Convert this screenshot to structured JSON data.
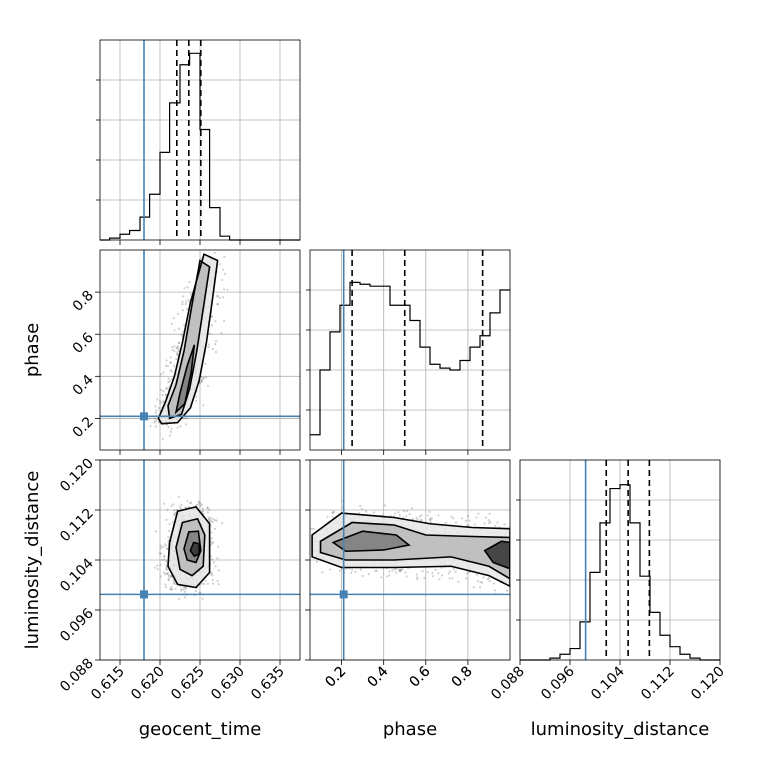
{
  "chart_data": {
    "type": "corner",
    "parameters": [
      "geocent_time",
      "phase",
      "luminosity_distance"
    ],
    "ranges": {
      "geocent_time": [
        0.6125,
        0.6375
      ],
      "phase": [
        0.05,
        1.0
      ],
      "luminosity_distance": [
        0.088,
        0.12
      ]
    },
    "ticks": {
      "geocent_time": [
        0.615,
        0.62,
        0.625,
        0.63,
        0.635
      ],
      "phase": [
        0.2,
        0.4,
        0.6,
        0.8
      ],
      "luminosity_distance": [
        0.088,
        0.096,
        0.104,
        0.112,
        0.12
      ]
    },
    "tick_labels": {
      "geocent_time": [
        "0.615",
        "0.620",
        "0.625",
        "0.630",
        "0.635"
      ],
      "phase": [
        "0.2",
        "0.4",
        "0.6",
        "0.8"
      ],
      "luminosity_distance": [
        "0.088",
        "0.096",
        "0.104",
        "0.112",
        "0.120"
      ]
    },
    "truths": {
      "geocent_time": 0.618,
      "phase": 0.21,
      "luminosity_distance": 0.0985
    },
    "quantiles": {
      "geocent_time": [
        0.6221,
        0.6236,
        0.6251
      ],
      "phase": [
        0.25,
        0.5,
        0.87
      ],
      "luminosity_distance": [
        0.1018,
        0.1053,
        0.1087
      ]
    },
    "histograms": {
      "geocent_time": {
        "edges": [
          0.6125,
          0.6137,
          0.615,
          0.6162,
          0.6175,
          0.6187,
          0.62,
          0.6212,
          0.6225,
          0.6237,
          0.625,
          0.6262,
          0.6275,
          0.6287,
          0.63,
          0.6312,
          0.6325,
          0.6337,
          0.635,
          0.6362,
          0.6375
        ],
        "counts": [
          0.0,
          0.01,
          0.03,
          0.05,
          0.12,
          0.24,
          0.46,
          0.72,
          0.92,
          0.98,
          0.58,
          0.17,
          0.02,
          0.0,
          0.0,
          0.0,
          0.0,
          0.0,
          0.0,
          0.0
        ]
      },
      "phase": {
        "edges": [
          0.05,
          0.0975,
          0.145,
          0.1925,
          0.24,
          0.2875,
          0.335,
          0.3825,
          0.43,
          0.4775,
          0.525,
          0.5725,
          0.62,
          0.6675,
          0.715,
          0.7625,
          0.81,
          0.8575,
          0.905,
          0.9525,
          1.0
        ],
        "counts": [
          0.08,
          0.42,
          0.62,
          0.76,
          0.88,
          0.87,
          0.86,
          0.86,
          0.76,
          0.76,
          0.68,
          0.54,
          0.45,
          0.43,
          0.42,
          0.47,
          0.54,
          0.6,
          0.72,
          0.84
        ]
      },
      "luminosity_distance": {
        "edges": [
          0.088,
          0.0896,
          0.0912,
          0.0928,
          0.0944,
          0.096,
          0.0976,
          0.0992,
          0.1008,
          0.1024,
          0.104,
          0.1056,
          0.1072,
          0.1088,
          0.1104,
          0.112,
          0.1136,
          0.1152,
          0.1168,
          0.1184,
          0.12
        ],
        "counts": [
          0.0,
          0.0,
          0.0,
          0.01,
          0.03,
          0.06,
          0.2,
          0.46,
          0.72,
          0.9,
          0.92,
          0.72,
          0.44,
          0.25,
          0.13,
          0.07,
          0.03,
          0.01,
          0.0,
          0.0
        ]
      }
    },
    "pairs": [
      {
        "x": "geocent_time",
        "y": "phase",
        "levels": [
          [
            [
              0.6202,
              0.175
            ],
            [
              0.6222,
              0.18
            ],
            [
              0.6238,
              0.25
            ],
            [
              0.6249,
              0.38
            ],
            [
              0.6258,
              0.56
            ],
            [
              0.6265,
              0.75
            ],
            [
              0.6272,
              0.95
            ],
            [
              0.6255,
              0.98
            ],
            [
              0.6238,
              0.75
            ],
            [
              0.6228,
              0.56
            ],
            [
              0.6218,
              0.4
            ],
            [
              0.6207,
              0.28
            ],
            [
              0.6198,
              0.2
            ]
          ],
          [
            [
              0.6212,
              0.2
            ],
            [
              0.6227,
              0.22
            ],
            [
              0.6237,
              0.34
            ],
            [
              0.6246,
              0.52
            ],
            [
              0.6254,
              0.72
            ],
            [
              0.6262,
              0.92
            ],
            [
              0.625,
              0.95
            ],
            [
              0.624,
              0.74
            ],
            [
              0.623,
              0.52
            ],
            [
              0.622,
              0.36
            ],
            [
              0.621,
              0.26
            ]
          ],
          [
            [
              0.622,
              0.23
            ],
            [
              0.6231,
              0.27
            ],
            [
              0.6239,
              0.42
            ],
            [
              0.6243,
              0.55
            ],
            [
              0.6234,
              0.45
            ],
            [
              0.6225,
              0.32
            ]
          ]
        ]
      },
      {
        "x": "geocent_time",
        "y": "luminosity_distance",
        "levels": [
          [
            [
              0.6212,
              0.1068
            ],
            [
              0.6222,
              0.1118
            ],
            [
              0.6245,
              0.1125
            ],
            [
              0.6262,
              0.1098
            ],
            [
              0.6262,
              0.102
            ],
            [
              0.6245,
              0.0996
            ],
            [
              0.6222,
              0.1001
            ],
            [
              0.621,
              0.103
            ]
          ],
          [
            [
              0.622,
              0.106
            ],
            [
              0.6228,
              0.11
            ],
            [
              0.6247,
              0.1106
            ],
            [
              0.6256,
              0.108
            ],
            [
              0.6254,
              0.103
            ],
            [
              0.624,
              0.1015
            ],
            [
              0.6225,
              0.1025
            ]
          ],
          [
            [
              0.623,
              0.1058
            ],
            [
              0.6236,
              0.1085
            ],
            [
              0.6248,
              0.1086
            ],
            [
              0.6251,
              0.1055
            ],
            [
              0.6245,
              0.1036
            ],
            [
              0.6234,
              0.104
            ]
          ],
          [
            [
              0.6238,
              0.1055
            ],
            [
              0.6242,
              0.1068
            ],
            [
              0.6249,
              0.1066
            ],
            [
              0.6249,
              0.105
            ],
            [
              0.6243,
              0.1046
            ]
          ]
        ]
      },
      {
        "x": "phase",
        "y": "luminosity_distance",
        "levels": [
          [
            [
              0.06,
              0.108
            ],
            [
              0.2,
              0.1115
            ],
            [
              0.45,
              0.1108
            ],
            [
              0.62,
              0.1098
            ],
            [
              0.82,
              0.1092
            ],
            [
              1.0,
              0.109
            ],
            [
              1.0,
              0.0998
            ],
            [
              0.9,
              0.1015
            ],
            [
              0.72,
              0.103
            ],
            [
              0.45,
              0.1028
            ],
            [
              0.2,
              0.1028
            ],
            [
              0.06,
              0.1045
            ]
          ],
          [
            [
              0.1,
              0.107
            ],
            [
              0.25,
              0.11
            ],
            [
              0.45,
              0.1096
            ],
            [
              0.6,
              0.108
            ],
            [
              0.78,
              0.1078
            ],
            [
              1.0,
              0.1076
            ],
            [
              1.0,
              0.101
            ],
            [
              0.9,
              0.103
            ],
            [
              0.72,
              0.1045
            ],
            [
              0.45,
              0.104
            ],
            [
              0.22,
              0.104
            ],
            [
              0.1,
              0.1052
            ]
          ],
          [
            [
              0.16,
              0.1068
            ],
            [
              0.3,
              0.1086
            ],
            [
              0.46,
              0.108
            ],
            [
              0.52,
              0.1064
            ],
            [
              0.4,
              0.1056
            ],
            [
              0.22,
              0.1054
            ]
          ],
          [
            [
              0.88,
              0.1055
            ],
            [
              0.96,
              0.107
            ],
            [
              1.0,
              0.1068
            ],
            [
              1.0,
              0.1026
            ],
            [
              0.92,
              0.1036
            ]
          ]
        ]
      }
    ],
    "grid": true
  }
}
